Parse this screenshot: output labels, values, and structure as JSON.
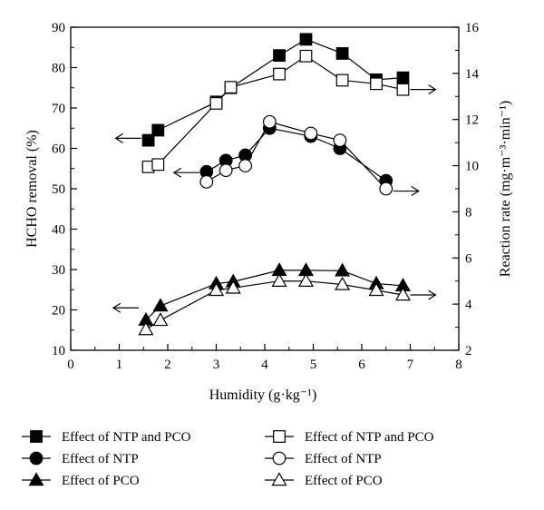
{
  "chart_data": {
    "type": "line",
    "x_axis": {
      "label": "Humidity (g·kg⁻¹)",
      "range": [
        0,
        8
      ],
      "ticks": [
        "0",
        "1",
        "2",
        "3",
        "4",
        "5",
        "6",
        "7",
        "8"
      ]
    },
    "y_axis_left": {
      "label": "HCHO removal (%)",
      "range": [
        10,
        90
      ],
      "ticks": [
        "10",
        "20",
        "30",
        "40",
        "50",
        "60",
        "70",
        "80",
        "90"
      ]
    },
    "y_axis_right": {
      "label": "Reaction rate (mg·m⁻³·min⁻¹)",
      "range": [
        2,
        16
      ],
      "ticks": [
        "2",
        "4",
        "6",
        "8",
        "10",
        "12",
        "14",
        "16"
      ]
    },
    "grid": false,
    "legend_position": "bottom",
    "series": [
      {
        "name": "Effect of NTP and PCO",
        "axis": "left",
        "marker": "square",
        "fill": "filled",
        "arrow": "left",
        "arrow_y": 62.5,
        "points": [
          [
            1.6,
            62
          ],
          [
            1.8,
            64.5
          ],
          [
            3.0,
            71.5
          ],
          [
            3.3,
            75
          ],
          [
            4.3,
            83
          ],
          [
            4.85,
            87
          ],
          [
            5.6,
            83.5
          ],
          [
            6.3,
            77
          ],
          [
            6.85,
            77.5
          ]
        ]
      },
      {
        "name": "Effect of NTP and PCO",
        "axis": "right",
        "marker": "square",
        "fill": "open",
        "arrow": "right",
        "arrow_y": 13.3,
        "points": [
          [
            1.6,
            9.95
          ],
          [
            1.8,
            10.05
          ],
          [
            3.0,
            12.7
          ],
          [
            3.3,
            13.4
          ],
          [
            4.3,
            13.97
          ],
          [
            4.85,
            14.75
          ],
          [
            5.6,
            13.7
          ],
          [
            6.3,
            13.55
          ],
          [
            6.85,
            13.3
          ]
        ]
      },
      {
        "name": "Effect of NTP",
        "axis": "left",
        "marker": "circle",
        "fill": "filled",
        "arrow": "left",
        "arrow_y": 54,
        "points": [
          [
            2.8,
            54.2
          ],
          [
            3.2,
            57
          ],
          [
            3.6,
            58.3
          ],
          [
            4.1,
            65
          ],
          [
            4.95,
            63
          ],
          [
            5.55,
            60
          ],
          [
            6.5,
            52
          ]
        ]
      },
      {
        "name": "Effect of NTP",
        "axis": "right",
        "marker": "circle",
        "fill": "open",
        "arrow": "right",
        "arrow_y": 8.9,
        "points": [
          [
            2.8,
            9.3
          ],
          [
            3.2,
            9.8
          ],
          [
            3.6,
            10
          ],
          [
            4.1,
            11.9
          ],
          [
            4.95,
            11.4
          ],
          [
            5.55,
            11.1
          ],
          [
            6.5,
            9.0
          ]
        ]
      },
      {
        "name": "Effect of PCO",
        "axis": "left",
        "marker": "triangle",
        "fill": "filled",
        "arrow": "left",
        "arrow_y": 20.5,
        "points": [
          [
            1.55,
            17.5
          ],
          [
            1.85,
            21
          ],
          [
            3.0,
            26.5
          ],
          [
            3.35,
            27
          ],
          [
            4.3,
            29.8
          ],
          [
            4.85,
            29.8
          ],
          [
            5.6,
            29.7
          ],
          [
            6.3,
            26.5
          ],
          [
            6.85,
            26
          ]
        ]
      },
      {
        "name": "Effect of PCO",
        "axis": "right",
        "marker": "triangle",
        "fill": "open",
        "arrow": "right",
        "arrow_y": 4.4,
        "points": [
          [
            1.55,
            2.9
          ],
          [
            1.85,
            3.3
          ],
          [
            3.0,
            4.6
          ],
          [
            3.35,
            4.7
          ],
          [
            4.3,
            5.0
          ],
          [
            4.85,
            5.0
          ],
          [
            5.6,
            4.85
          ],
          [
            6.3,
            4.6
          ],
          [
            6.85,
            4.4
          ]
        ]
      }
    ]
  },
  "legend": {
    "left": [
      {
        "label": "Effect of NTP and PCO",
        "marker": "square",
        "fill": "filled"
      },
      {
        "label": "Effect of NTP",
        "marker": "circle",
        "fill": "filled"
      },
      {
        "label": "Effect of PCO",
        "marker": "triangle",
        "fill": "filled"
      }
    ],
    "right": [
      {
        "label": "Effect of NTP and PCO",
        "marker": "square",
        "fill": "open"
      },
      {
        "label": "Effect of NTP",
        "marker": "circle",
        "fill": "open"
      },
      {
        "label": "Effect of PCO",
        "marker": "triangle",
        "fill": "open"
      }
    ]
  }
}
